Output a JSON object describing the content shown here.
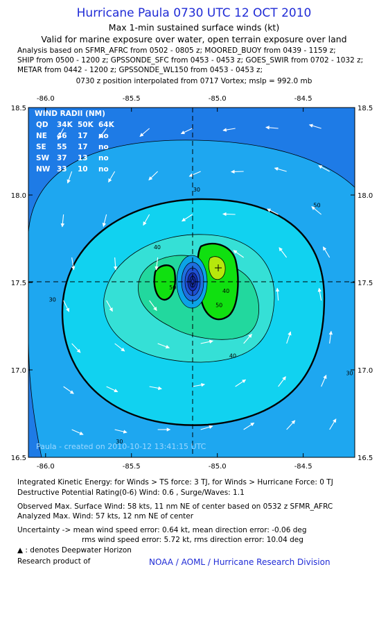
{
  "header": {
    "title": "Hurricane Paula 0730 UTC 12 OCT 2010",
    "subtitle1": "Max 1-min sustained surface winds (kt)",
    "subtitle2": "Valid for marine exposure over water, open terrain exposure over land",
    "analysis": [
      "Analysis based on SFMR_AFRC from 0502 - 0805 z; MOORED_BUOY from 0439 - 1159 z;",
      "SHIP from 0500 - 1200 z; GPSSONDE_SFC from 0453 - 0453 z; GOES_SWIR from 0702 - 1032 z;",
      "METAR from 0442 - 1200 z; GPSSONDE_WL150 from 0453 - 0453 z;"
    ],
    "position_note": "0730 z position interpolated from 0717 Vortex; mslp = 992.0 mb"
  },
  "chart_data": {
    "type": "contour",
    "x_ticks": [
      "-86.0",
      "-85.5",
      "-85.0",
      "-84.5"
    ],
    "y_ticks": [
      "18.5",
      "18.0",
      "17.5",
      "17.0",
      "16.5"
    ],
    "xlim": [
      -86.1,
      -84.2
    ],
    "ylim": [
      16.5,
      18.5
    ],
    "center": {
      "lon": -85.05,
      "lat": 17.5
    },
    "max_wind_mark": {
      "lon": -84.96,
      "lat": 17.59
    },
    "contour_labels": [
      {
        "text": "30",
        "lon": -85.12,
        "lat": 18.02
      },
      {
        "text": "30",
        "lon": -85.96,
        "lat": 17.39
      },
      {
        "text": "30",
        "lon": -84.23,
        "lat": 16.97
      },
      {
        "text": "30",
        "lon": -85.57,
        "lat": 16.58
      },
      {
        "text": "30",
        "lon": -86.0,
        "lat": 18.68
      },
      {
        "text": "50",
        "lon": -84.42,
        "lat": 17.93
      },
      {
        "text": "40",
        "lon": -85.35,
        "lat": 17.69
      },
      {
        "text": "40",
        "lon": -84.91,
        "lat": 17.07
      },
      {
        "text": "50",
        "lon": -85.26,
        "lat": 17.46
      },
      {
        "text": "50",
        "lon": -84.99,
        "lat": 17.36
      },
      {
        "text": "40",
        "lon": -84.95,
        "lat": 17.44
      }
    ],
    "wind_radii_table": {
      "title": "WIND RADII (NM)",
      "header": [
        "QD",
        "34K",
        "50K",
        "64K"
      ],
      "rows": [
        [
          "NE",
          "46",
          "17",
          "no"
        ],
        [
          "SE",
          "55",
          "17",
          "no"
        ],
        [
          "SW",
          "37",
          "13",
          "no"
        ],
        [
          "NW",
          "33",
          "10",
          "no"
        ]
      ]
    },
    "credit": "Paula - created on 2010-10-12 13:41:15 UTC",
    "colors": {
      "band_lt30": "#1e7be6",
      "band_30_40": "#1ea7f0",
      "band_40_50": "#11d2f0",
      "band_50_60": "#35e0d6",
      "band_60_64": "#22d89e",
      "band_64_70": "#10e010",
      "band_70p": "#b6e80c",
      "eye": "#1530b0"
    }
  },
  "footer": {
    "ike": "Integrated Kinetic Energy:  for Winds > TS force: 3 TJ,  for Winds > Hurricane Force: 0 TJ",
    "dpr": "Destructive Potential Rating(0-6)   Wind: 0.6 , Surge/Waves: 1.1",
    "observed": "Observed Max. Surface Wind: 58 kts, 11 nm NE of center based on 0532 z SFMR_AFRC",
    "analyzed": "Analyzed Max. Wind: 57 kts, 12 nm NE of center",
    "uncertainty1": "Uncertainty -> mean wind speed error: 0.64 kt,   mean direction error:  -0.06 deg",
    "uncertainty2": "rms wind speed error: 5.72 kt,   rms direction error: 10.04 deg",
    "deepwater": " : denotes Deepwater Horizon",
    "research": "Research product of",
    "org": "NOAA / AOML / Hurricane Research Division"
  }
}
